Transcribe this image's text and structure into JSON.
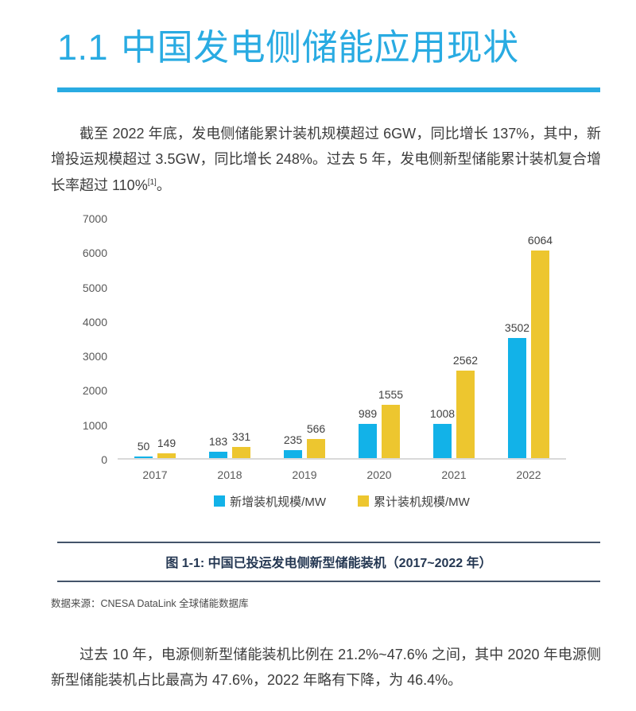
{
  "header": {
    "section_number": "1.1",
    "section_title": "中国发电侧储能应用现状"
  },
  "paragraphs": {
    "p1_main": "截至 2022 年底，发电侧储能累计装机规模超过 6GW，同比增长 137%，其中，新增投运规模超过 3.5GW，同比增长 248%。过去 5 年，发电侧新型储能累计装机复合增长率超过 110%",
    "p1_sup": "[1]",
    "p1_tail": "。",
    "p2": "过去 10 年，电源侧新型储能装机比例在 21.2%~47.6% 之间，其中 2020 年电源侧新型储能装机占比最高为 47.6%，2022 年略有下降，为 46.4%。"
  },
  "chart_data": {
    "type": "bar",
    "categories": [
      "2017",
      "2018",
      "2019",
      "2020",
      "2021",
      "2022"
    ],
    "series": [
      {
        "name": "新增装机规模/MW",
        "color": "#12B2E8",
        "values": [
          50,
          183,
          235,
          989,
          1008,
          3502
        ]
      },
      {
        "name": "累计装机规模/MW",
        "color": "#EDC62F",
        "values": [
          149,
          331,
          566,
          1555,
          2562,
          6064
        ]
      }
    ],
    "title": "",
    "xlabel": "",
    "ylabel": "",
    "ylim": [
      0,
      7000
    ],
    "yticks": [
      0,
      1000,
      2000,
      3000,
      4000,
      5000,
      6000,
      7000
    ],
    "grid": false,
    "legend_position": "bottom",
    "data_labels": true
  },
  "figure": {
    "caption": "图 1-1: 中国已投运发电侧新型储能装机（2017~2022 年）",
    "source": "数据来源：CNESA DataLink 全球储能数据库"
  },
  "colors": {
    "accent": "#29ABE2",
    "series_new": "#12B2E8",
    "series_cumulative": "#EDC62F",
    "caption_rule": "#44546A",
    "axis_line": "#D9D9D9",
    "body_text": "#3C3C3C",
    "axis_text": "#595959"
  }
}
